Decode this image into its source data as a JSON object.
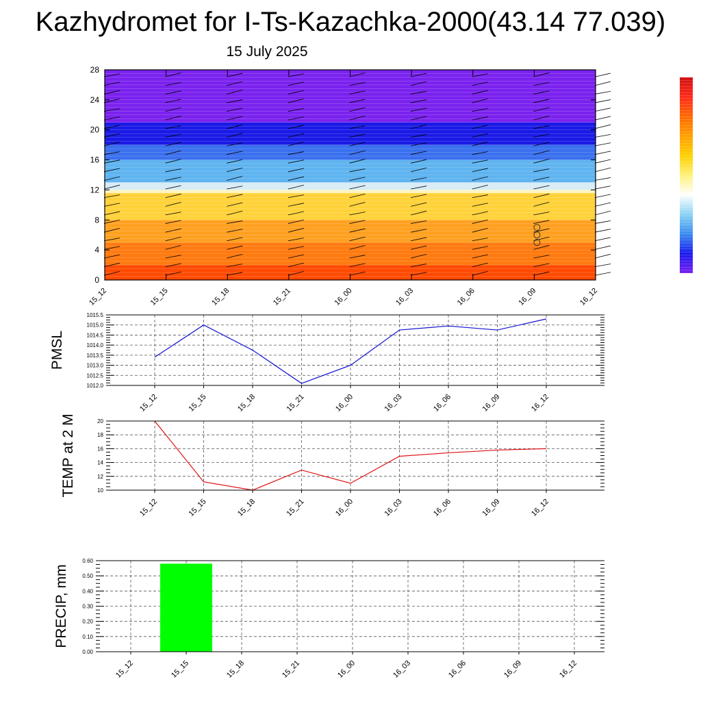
{
  "title": "Kazhydromet for I-Ts-Kazachka-2000(43.14 77.039)",
  "subtitle": "15 July 2025",
  "colors": {
    "pmsl_line": "#1010d0",
    "temp_line": "#e01010",
    "precip_bar": "#00ff00",
    "grid": "#555555",
    "colorbar": [
      "#7a1ff0",
      "#1a1aee",
      "#3a8cf0",
      "#8ad2f5",
      "#ffffff",
      "#fff27a",
      "#ffd000",
      "#ffa000",
      "#ff6a00",
      "#ff2a1a",
      "#d01010"
    ]
  },
  "chart_data": [
    {
      "type": "heatmap",
      "name": "cross-section",
      "x_tick_labels": [
        "15_12",
        "15_15",
        "15_18",
        "15_21",
        "16_00",
        "16_03",
        "16_06",
        "16_09",
        "16_12"
      ],
      "y_tick_labels": [
        "0",
        "4",
        "8",
        "12",
        "16",
        "20",
        "24",
        "28"
      ],
      "ylim": [
        0,
        28
      ],
      "bands": [
        {
          "from": 0,
          "to": 2,
          "color": "#ff4a00"
        },
        {
          "from": 2,
          "to": 5,
          "color": "#ff7a10"
        },
        {
          "from": 5,
          "to": 8,
          "color": "#ffa020"
        },
        {
          "from": 8,
          "to": 11.6,
          "color": "#ffd23a"
        },
        {
          "from": 11.6,
          "to": 12,
          "color": "#fff6c0"
        },
        {
          "from": 12,
          "to": 13,
          "color": "#d8ecf6"
        },
        {
          "from": 13,
          "to": 16,
          "color": "#5fb4f0"
        },
        {
          "from": 16,
          "to": 18,
          "color": "#3a70ee"
        },
        {
          "from": 18,
          "to": 21,
          "color": "#1a1ae6"
        },
        {
          "from": 21,
          "to": 28,
          "color": "#7a22ee"
        }
      ],
      "markers": [
        {
          "x": 7,
          "y": [
            5,
            6,
            7
          ],
          "symbol": "circle"
        }
      ]
    },
    {
      "type": "line",
      "ylabel": "PMSL",
      "x": [
        "15_12",
        "15_15",
        "15_18",
        "15_21",
        "16_00",
        "16_03",
        "16_06",
        "16_09",
        "16_12"
      ],
      "values": [
        1013.4,
        1015.0,
        1013.75,
        1012.1,
        1013.0,
        1014.75,
        1014.95,
        1014.75,
        1015.3
      ],
      "ylim": [
        1012.0,
        1015.5
      ],
      "y_tick_labels": [
        "1012.0",
        "1012.5",
        "1013.0",
        "1013.5",
        "1014.0",
        "1014.5",
        "1015.0",
        "1015.5"
      ],
      "grid": true
    },
    {
      "type": "line",
      "ylabel": "TEMP at 2 M",
      "x": [
        "15_12",
        "15_15",
        "15_18",
        "15_21",
        "16_00",
        "16_03",
        "16_06",
        "16_09",
        "16_12"
      ],
      "values": [
        20.0,
        11.2,
        10.0,
        12.9,
        11.0,
        14.9,
        15.4,
        15.8,
        16.0
      ],
      "ylim": [
        10,
        20
      ],
      "y_tick_labels": [
        "10",
        "12",
        "14",
        "16",
        "18",
        "20"
      ],
      "grid": true
    },
    {
      "type": "bar",
      "ylabel": "PRECIP, mm",
      "categories": [
        "15_12",
        "15_15",
        "15_18",
        "15_21",
        "16_00",
        "16_03",
        "16_06",
        "16_09",
        "16_12"
      ],
      "values": [
        0,
        0.58,
        0,
        0,
        0,
        0,
        0,
        0,
        0
      ],
      "ylim": [
        0,
        0.6
      ],
      "y_tick_labels": [
        "0.00",
        "0.10",
        "0.20",
        "0.30",
        "0.40",
        "0.50",
        "0.60"
      ],
      "grid": true
    }
  ]
}
